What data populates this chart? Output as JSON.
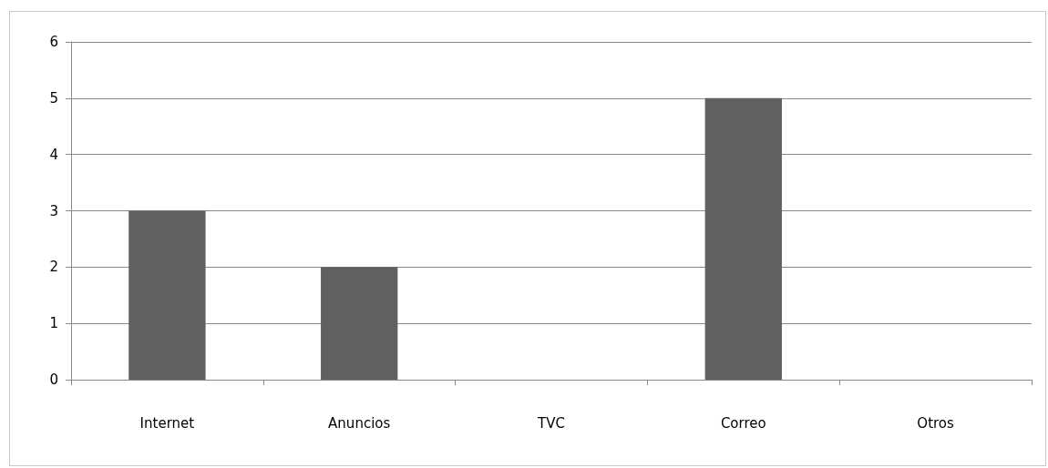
{
  "chart_data": {
    "type": "bar",
    "categories": [
      "Internet",
      "Anuncios",
      "TVC",
      "Correo",
      "Otros"
    ],
    "values": [
      3,
      2,
      0,
      5,
      0
    ],
    "color": "#606060",
    "ylim": [
      0,
      6
    ],
    "yticks": [
      0,
      1,
      2,
      3,
      4,
      5,
      6
    ],
    "grid": "y"
  }
}
